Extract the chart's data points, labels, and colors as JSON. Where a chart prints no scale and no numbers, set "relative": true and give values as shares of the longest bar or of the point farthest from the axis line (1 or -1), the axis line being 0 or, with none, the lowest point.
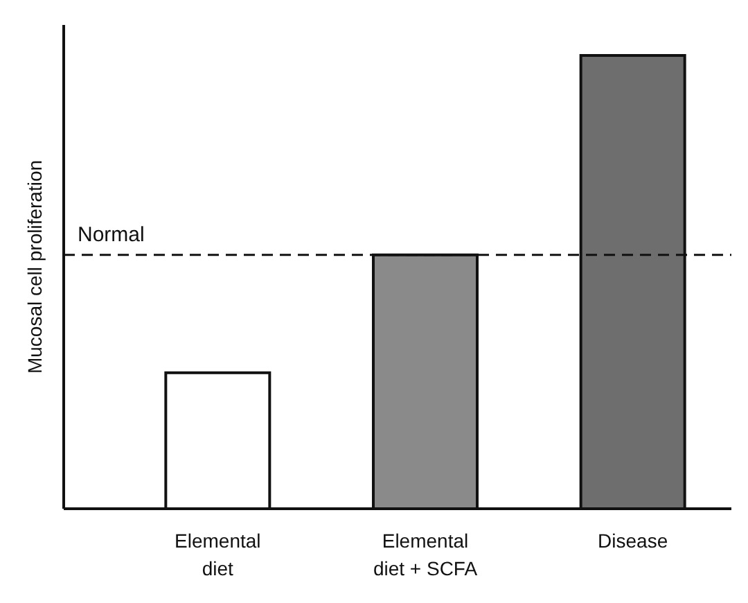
{
  "chart_data": {
    "type": "bar",
    "ylabel": "Mucosal cell proliferation",
    "relative": true,
    "categories": [
      "Elemental diet",
      "Elemental diet + SCFA",
      "Disease"
    ],
    "values": [
      0.3,
      0.56,
      1
    ],
    "colors": [
      "#ffffff",
      "#8a8a8a",
      "#6e6e6e"
    ],
    "ref_lines": [
      {
        "axis": "y",
        "value": 0.56,
        "label": "Normal",
        "line_style": "dashed"
      }
    ],
    "line_style": "solid"
  }
}
